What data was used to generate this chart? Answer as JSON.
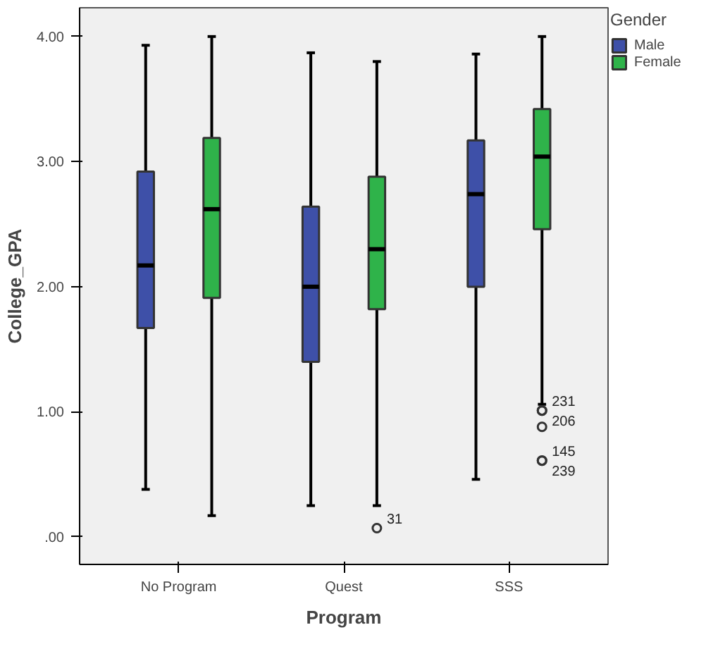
{
  "chart_data": {
    "type": "box",
    "xlabel": "Program",
    "ylabel": "College_GPA",
    "legend_title": "Gender",
    "categories": [
      "No Program",
      "Quest",
      "SSS"
    ],
    "series": [
      {
        "name": "Male",
        "color": "#3e50a8",
        "boxes": [
          {
            "low": 0.38,
            "q1": 1.67,
            "median": 2.17,
            "q3": 2.92,
            "high": 3.93
          },
          {
            "low": 0.25,
            "q1": 1.4,
            "median": 2.0,
            "q3": 2.64,
            "high": 3.87
          },
          {
            "low": 0.46,
            "q1": 2.0,
            "median": 2.74,
            "q3": 3.17,
            "high": 3.86
          }
        ]
      },
      {
        "name": "Female",
        "color": "#2fb34a",
        "boxes": [
          {
            "low": 0.17,
            "q1": 1.91,
            "median": 2.62,
            "q3": 3.19,
            "high": 4.0
          },
          {
            "low": 0.25,
            "q1": 1.82,
            "median": 2.3,
            "q3": 2.88,
            "high": 3.8,
            "outliers": [
              0.07
            ]
          },
          {
            "low": 1.06,
            "q1": 2.46,
            "median": 3.04,
            "q3": 3.42,
            "high": 4.0,
            "outliers": [
              1.01,
              1.01,
              0.61,
              0.61,
              0.88
            ]
          }
        ]
      }
    ],
    "ylim": [
      -0.22,
      4.23
    ],
    "yticks": [
      {
        "value": 0,
        "label": ".00"
      },
      {
        "value": 1,
        "label": "1.00"
      },
      {
        "value": 2,
        "label": "2.00"
      },
      {
        "value": 3,
        "label": "3.00"
      },
      {
        "value": 4,
        "label": "4.00"
      }
    ],
    "annotations": [
      "31",
      "231",
      "206",
      "145",
      "239"
    ],
    "grid": false,
    "legend": "top right"
  }
}
